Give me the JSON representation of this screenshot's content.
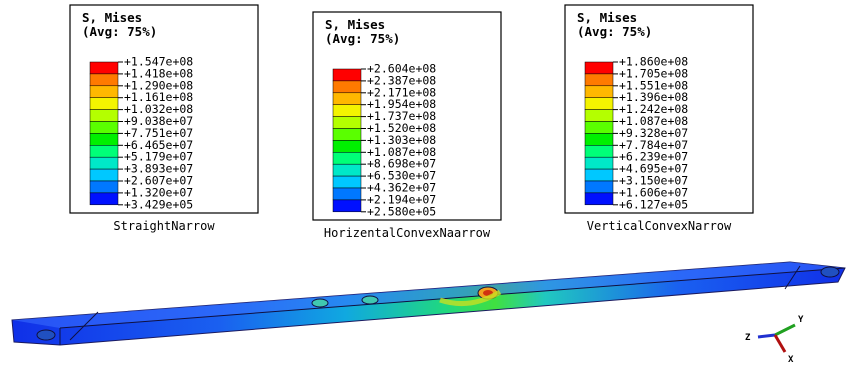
{
  "legends": [
    {
      "title": [
        "S, Mises",
        "(Avg: 75%)"
      ],
      "labels": [
        "+1.547e+08",
        "+1.418e+08",
        "+1.290e+08",
        "+1.161e+08",
        "+1.032e+08",
        "+9.038e+07",
        "+7.751e+07",
        "+6.465e+07",
        "+5.179e+07",
        "+3.893e+07",
        "+2.607e+07",
        "+1.320e+07",
        "+3.429e+05"
      ],
      "caption": "StraightNarrow"
    },
    {
      "title": [
        "S, Mises",
        "(Avg: 75%)"
      ],
      "labels": [
        "+2.604e+08",
        "+2.387e+08",
        "+2.171e+08",
        "+1.954e+08",
        "+1.737e+08",
        "+1.520e+08",
        "+1.303e+08",
        "+1.087e+08",
        "+8.698e+07",
        "+6.530e+07",
        "+4.362e+07",
        "+2.194e+07",
        "+2.580e+05"
      ],
      "caption": "HorizentalConvexNaarrow"
    },
    {
      "title": [
        "S, Mises",
        "(Avg: 75%)"
      ],
      "labels": [
        "+1.860e+08",
        "+1.705e+08",
        "+1.551e+08",
        "+1.396e+08",
        "+1.242e+08",
        "+1.087e+08",
        "+9.328e+07",
        "+7.784e+07",
        "+6.239e+07",
        "+4.695e+07",
        "+3.150e+07",
        "+1.606e+07",
        "+6.127e+05"
      ],
      "caption": "VerticalConvexNarrow"
    }
  ],
  "triad": {
    "y": "Y",
    "z": "Z",
    "x": "X"
  }
}
